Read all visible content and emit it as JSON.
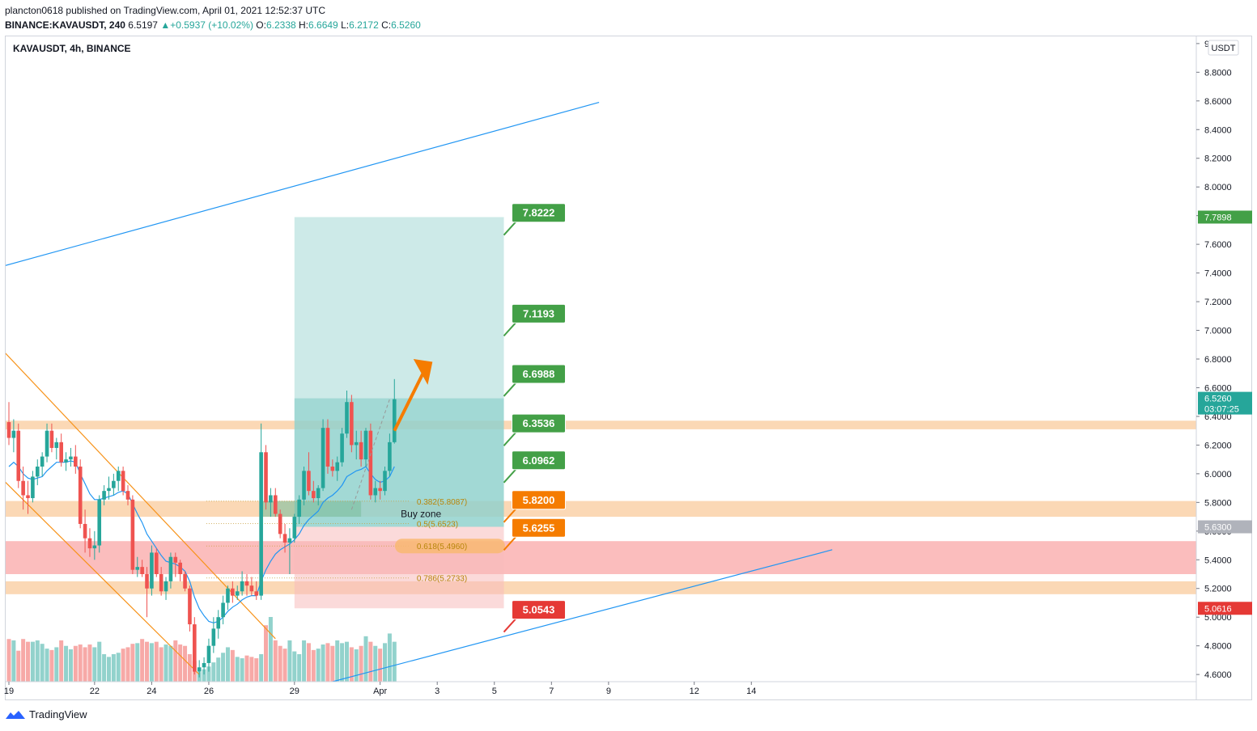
{
  "header": {
    "line1": "plancton0618 published on TradingView.com, April 01, 2021 12:52:37 UTC",
    "symbol": "BINANCE:KAVAUSDT, 240",
    "last": "6.5197",
    "change": "+0.5937 (+10.02%)",
    "o_label": "O:",
    "o": "6.2338",
    "h_label": "H:",
    "h": "6.6649",
    "l_label": "L:",
    "l": "6.2172",
    "c_label": "C:",
    "c": "6.5260"
  },
  "chart_title": "KAVAUSDT, 4h, BINANCE",
  "footer": {
    "brand": "TradingView"
  },
  "colors": {
    "up": "#26a69a",
    "down": "#ef5350",
    "ma": "#2196f3",
    "support": "#f9cb9c",
    "resist": "#f77c7c",
    "target": "#b2dfdb",
    "label_green": "#43a047",
    "label_orange": "#f57c00",
    "label_red": "#e53935"
  },
  "chart_data": {
    "type": "candlestick",
    "price_axis": {
      "unit": "USDT",
      "min": 4.55,
      "max": 9.05,
      "ticks": [
        "9.0000",
        "8.8000",
        "8.6000",
        "8.4000",
        "8.2000",
        "8.0000",
        "7.8000",
        "7.6000",
        "7.4000",
        "7.2000",
        "7.0000",
        "6.8000",
        "6.6000",
        "6.4000",
        "6.2000",
        "6.0000",
        "5.8000",
        "5.6000",
        "5.4000",
        "5.2000",
        "5.0000",
        "4.8000",
        "4.6000"
      ],
      "price_tags": [
        {
          "value": "7.7898",
          "color": "#43a047"
        },
        {
          "value": "6.5260",
          "sub": "03:07:25",
          "color": "#26a69a"
        },
        {
          "value": "5.6300",
          "color": "#b0b3bb"
        },
        {
          "value": "5.0616",
          "color": "#e53935"
        }
      ]
    },
    "time_axis": {
      "labels": [
        {
          "text": "19",
          "t": 0
        },
        {
          "text": "22",
          "t": 18
        },
        {
          "text": "24",
          "t": 30
        },
        {
          "text": "26",
          "t": 42
        },
        {
          "text": "29",
          "t": 60
        },
        {
          "text": "Apr",
          "t": 78
        },
        {
          "text": "3",
          "t": 90
        },
        {
          "text": "5",
          "t": 102
        },
        {
          "text": "7",
          "t": 114
        },
        {
          "text": "9",
          "t": 126
        },
        {
          "text": "12",
          "t": 144
        },
        {
          "text": "14",
          "t": 156
        }
      ]
    },
    "candles": [
      [
        6.36,
        6.5,
        6.2,
        6.25
      ],
      [
        6.25,
        6.38,
        6.15,
        6.3
      ],
      [
        6.3,
        6.35,
        5.9,
        5.95
      ],
      [
        5.95,
        6.05,
        5.75,
        5.85
      ],
      [
        5.85,
        5.95,
        5.72,
        5.83
      ],
      [
        5.83,
        6.02,
        5.8,
        5.98
      ],
      [
        5.98,
        6.1,
        5.92,
        6.05
      ],
      [
        6.05,
        6.15,
        5.98,
        6.12
      ],
      [
        6.12,
        6.35,
        6.08,
        6.3
      ],
      [
        6.3,
        6.35,
        6.15,
        6.18
      ],
      [
        6.18,
        6.25,
        6.1,
        6.22
      ],
      [
        6.22,
        6.28,
        6.05,
        6.08
      ],
      [
        6.08,
        6.15,
        6.02,
        6.1
      ],
      [
        6.1,
        6.18,
        6.05,
        6.12
      ],
      [
        6.12,
        6.2,
        6.0,
        6.05
      ],
      [
        6.05,
        6.1,
        5.62,
        5.65
      ],
      [
        5.65,
        5.75,
        5.45,
        5.55
      ],
      [
        5.55,
        5.62,
        5.42,
        5.48
      ],
      [
        5.48,
        5.6,
        5.4,
        5.5
      ],
      [
        5.5,
        5.85,
        5.45,
        5.82
      ],
      [
        5.82,
        5.92,
        5.78,
        5.88
      ],
      [
        5.88,
        5.98,
        5.82,
        5.9
      ],
      [
        5.9,
        6.0,
        5.85,
        5.95
      ],
      [
        5.95,
        6.05,
        5.88,
        6.02
      ],
      [
        6.02,
        6.05,
        5.85,
        5.88
      ],
      [
        5.88,
        5.92,
        5.78,
        5.82
      ],
      [
        5.82,
        5.85,
        5.3,
        5.33
      ],
      [
        5.33,
        5.42,
        5.28,
        5.35
      ],
      [
        5.35,
        5.4,
        5.28,
        5.3
      ],
      [
        5.3,
        5.35,
        5.0,
        5.2
      ],
      [
        5.2,
        5.5,
        5.15,
        5.45
      ],
      [
        5.45,
        5.48,
        5.28,
        5.3
      ],
      [
        5.3,
        5.35,
        5.15,
        5.18
      ],
      [
        5.18,
        5.28,
        5.12,
        5.25
      ],
      [
        5.25,
        5.45,
        5.2,
        5.42
      ],
      [
        5.42,
        5.45,
        5.28,
        5.38
      ],
      [
        5.38,
        5.4,
        5.25,
        5.3
      ],
      [
        5.3,
        5.32,
        5.18,
        5.2
      ],
      [
        5.2,
        5.22,
        4.9,
        4.95
      ],
      [
        4.95,
        5.0,
        4.6,
        4.62
      ],
      [
        4.62,
        4.7,
        4.58,
        4.65
      ],
      [
        4.65,
        4.72,
        4.6,
        4.68
      ],
      [
        4.68,
        4.85,
        4.62,
        4.8
      ],
      [
        4.8,
        5.0,
        4.75,
        4.92
      ],
      [
        4.92,
        5.05,
        4.85,
        5.0
      ],
      [
        5.0,
        5.15,
        4.95,
        5.1
      ],
      [
        5.1,
        5.22,
        5.05,
        5.2
      ],
      [
        5.2,
        5.25,
        5.1,
        5.15
      ],
      [
        5.15,
        5.22,
        5.12,
        5.18
      ],
      [
        5.18,
        5.32,
        5.15,
        5.25
      ],
      [
        5.25,
        5.3,
        5.15,
        5.22
      ],
      [
        5.22,
        5.28,
        5.15,
        5.18
      ],
      [
        5.18,
        5.25,
        5.12,
        5.15
      ],
      [
        5.15,
        6.35,
        5.12,
        6.15
      ],
      [
        6.15,
        6.2,
        5.75,
        5.8
      ],
      [
        5.8,
        5.9,
        5.7,
        5.85
      ],
      [
        5.85,
        5.9,
        5.7,
        5.72
      ],
      [
        5.72,
        5.75,
        5.55,
        5.58
      ],
      [
        5.58,
        5.65,
        5.45,
        5.52
      ],
      [
        5.52,
        5.62,
        5.3,
        5.55
      ],
      [
        5.55,
        5.72,
        5.52,
        5.7
      ],
      [
        5.7,
        5.85,
        5.65,
        5.82
      ],
      [
        5.82,
        6.05,
        5.78,
        6.02
      ],
      [
        6.02,
        6.15,
        5.85,
        5.88
      ],
      [
        5.88,
        5.95,
        5.8,
        5.83
      ],
      [
        5.83,
        5.92,
        5.78,
        5.9
      ],
      [
        5.9,
        6.38,
        5.88,
        6.32
      ],
      [
        6.32,
        6.38,
        6.0,
        6.05
      ],
      [
        6.05,
        6.1,
        5.98,
        6.02
      ],
      [
        6.02,
        6.12,
        5.95,
        6.08
      ],
      [
        6.08,
        6.32,
        6.05,
        6.28
      ],
      [
        6.28,
        6.58,
        6.25,
        6.5
      ],
      [
        6.5,
        6.55,
        6.15,
        6.2
      ],
      [
        6.2,
        6.3,
        6.1,
        6.22
      ],
      [
        6.22,
        6.3,
        6.05,
        6.1
      ],
      [
        6.1,
        6.32,
        6.05,
        6.3
      ],
      [
        6.3,
        6.35,
        5.82,
        5.85
      ],
      [
        5.85,
        5.95,
        5.8,
        5.9
      ],
      [
        5.9,
        5.95,
        5.82,
        5.88
      ],
      [
        5.88,
        6.05,
        5.85,
        6.02
      ],
      [
        6.02,
        6.28,
        5.98,
        6.22
      ],
      [
        6.22,
        6.66,
        6.21,
        6.52
      ]
    ],
    "volumes": [
      62,
      60,
      45,
      62,
      58,
      58,
      60,
      55,
      48,
      46,
      50,
      60,
      52,
      47,
      52,
      54,
      50,
      54,
      50,
      58,
      40,
      36,
      40,
      42,
      48,
      50,
      55,
      56,
      62,
      58,
      56,
      58,
      50,
      54,
      52,
      60,
      54,
      52,
      40,
      30,
      14,
      18,
      22,
      28,
      35,
      42,
      50,
      46,
      36,
      34,
      38,
      36,
      34,
      40,
      82,
      94,
      60,
      52,
      48,
      60,
      44,
      40,
      60,
      56,
      46,
      48,
      54,
      56,
      52,
      60,
      56,
      58,
      50,
      47,
      52,
      66,
      58,
      52,
      48,
      56,
      70,
      58
    ],
    "ma_line": [
      6.05,
      6.08,
      6.05,
      6.0,
      5.97,
      5.96,
      5.97,
      5.98,
      6.02,
      6.05,
      6.08,
      6.08,
      6.08,
      6.09,
      6.08,
      6.0,
      5.93,
      5.86,
      5.82,
      5.82,
      5.83,
      5.84,
      5.85,
      5.87,
      5.88,
      5.86,
      5.79,
      5.72,
      5.66,
      5.58,
      5.53,
      5.48,
      5.43,
      5.39,
      5.38,
      5.37,
      5.35,
      5.32,
      5.25,
      5.14,
      5.06,
      5.01,
      4.97,
      4.96,
      4.97,
      5.0,
      5.04,
      5.07,
      5.09,
      5.12,
      5.14,
      5.15,
      5.15,
      5.25,
      5.33,
      5.39,
      5.44,
      5.47,
      5.49,
      5.51,
      5.54,
      5.58,
      5.64,
      5.68,
      5.71,
      5.74,
      5.8,
      5.83,
      5.85,
      5.88,
      5.92,
      5.98,
      6.0,
      6.02,
      6.03,
      6.05,
      6.0,
      5.96,
      5.94,
      5.95,
      5.98,
      6.05
    ],
    "zones": [
      {
        "type": "support",
        "from": 6.31,
        "to": 6.37
      },
      {
        "type": "support",
        "from": 5.7,
        "to": 5.81
      },
      {
        "type": "resistance",
        "from": 5.3,
        "to": 5.53
      },
      {
        "type": "support",
        "from": 5.16,
        "to": 5.25
      }
    ],
    "position": {
      "entry": 5.63,
      "stop": 5.0616,
      "target": 7.7898,
      "current": 6.526,
      "from_t": 60,
      "to_t": 104
    },
    "fib_levels": [
      {
        "label": "0.382(5.8087)",
        "value": 5.8087
      },
      {
        "label": "0.5(5.6523)",
        "value": 5.6523
      },
      {
        "label": "0.618(5.4960)",
        "value": 5.496
      },
      {
        "label": "0.786(5.2733)",
        "value": 5.2733
      }
    ],
    "buy_zone_label": "Buy zone",
    "targets": [
      {
        "value": "7.8222",
        "color": "#43a047"
      },
      {
        "value": "7.1193",
        "color": "#43a047"
      },
      {
        "value": "6.6988",
        "color": "#43a047"
      },
      {
        "value": "6.3536",
        "color": "#43a047"
      },
      {
        "value": "6.0962",
        "color": "#43a047"
      },
      {
        "value": "5.8200",
        "color": "#f57c00"
      },
      {
        "value": "5.6255",
        "color": "#f57c00"
      },
      {
        "value": "5.0543",
        "color": "#e53935"
      }
    ],
    "trendlines": [
      {
        "color": "#2196f3",
        "points": [
          [
            -1,
            7.45
          ],
          [
            124,
            8.59
          ]
        ]
      },
      {
        "color": "#2196f3",
        "points": [
          [
            68,
            4.55
          ],
          [
            173,
            5.47
          ]
        ]
      },
      {
        "color": "#f7931a",
        "points": [
          [
            -1,
            6.85
          ],
          [
            56,
            4.85
          ]
        ]
      },
      {
        "color": "#f7931a",
        "points": [
          [
            -1,
            5.95
          ],
          [
            40,
            4.6
          ]
        ]
      }
    ]
  }
}
